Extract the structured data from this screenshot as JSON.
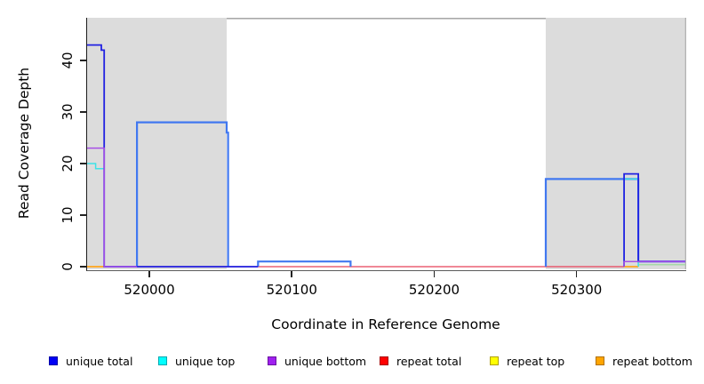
{
  "chart_data": {
    "type": "line",
    "subtype": "step-coverage-plot",
    "title": "",
    "xlabel": "Coordinate in Reference Genome",
    "ylabel": "Read Coverage Depth",
    "xlim": [
      519956,
      520376
    ],
    "ylim": [
      0,
      48
    ],
    "grid": "off",
    "legend_position": "bottom",
    "x_ticks": [
      {
        "label": "520000",
        "value": 520000
      },
      {
        "label": "520100",
        "value": 520100
      },
      {
        "label": "520200",
        "value": 520200
      },
      {
        "label": "520300",
        "value": 520300
      }
    ],
    "y_ticks": [
      {
        "label": "0",
        "value": 0
      },
      {
        "label": "10",
        "value": 10
      },
      {
        "label": "20",
        "value": 20
      },
      {
        "label": "30",
        "value": 30
      },
      {
        "label": "40",
        "value": 40
      }
    ],
    "shaded_regions": [
      {
        "x1": 519956,
        "x2": 520054,
        "color": "#DCDCDC"
      },
      {
        "x1": 520278,
        "x2": 520376,
        "color": "#DCDCDC"
      }
    ],
    "frame_top_color": "#9B9B9B",
    "series": [
      {
        "name": "unique total",
        "color": "#2222E2",
        "width": 1.8,
        "z": 6,
        "segments": [
          [
            519956,
            519966,
            43
          ],
          [
            519966,
            519968,
            42
          ],
          [
            519968,
            520076,
            0
          ],
          [
            520333,
            520343,
            18
          ],
          [
            520343,
            520376,
            1
          ]
        ]
      },
      {
        "name": "unique top",
        "color": "#3FE2E6",
        "width": 1.5,
        "z": 5,
        "segments": [
          [
            519956,
            519962,
            20
          ],
          [
            519962,
            519968,
            19
          ],
          [
            520333,
            520343,
            17
          ]
        ]
      },
      {
        "name": "unique bottom",
        "color": "#A64FE6",
        "width": 1.5,
        "z": 7,
        "segments": [
          [
            519956,
            519968,
            23
          ],
          [
            519968,
            519991,
            0
          ],
          [
            520333,
            520376,
            1
          ]
        ]
      },
      {
        "name": "repeat total",
        "color": "#E84058",
        "width": 1.3,
        "z": 1,
        "segments": [
          [
            519991,
            520333,
            0
          ]
        ]
      },
      {
        "name": "repeat top",
        "color": "#FFFF00",
        "width": 1.3,
        "z": 2,
        "segments": []
      },
      {
        "name": "repeat bottom",
        "color": "#FFA51C",
        "width": 1.8,
        "z": 3,
        "segments": [
          [
            519956,
            519968,
            0
          ],
          [
            520333,
            520343,
            0
          ]
        ]
      },
      {
        "name": "unlabeled bright blue line",
        "color": "#4178F0",
        "width": 2.2,
        "z": 4,
        "segments": [
          [
            519991,
            520054,
            28
          ],
          [
            520054,
            520055,
            26
          ],
          [
            520076,
            520141,
            1
          ],
          [
            520278,
            520343,
            17
          ],
          [
            520343,
            520376,
            1
          ]
        ]
      },
      {
        "name": "unlabeled light green line",
        "color": "#A6D8A8",
        "width": 1.5,
        "z": 0,
        "segments": [
          [
            520343,
            520376,
            0.4
          ]
        ]
      }
    ]
  },
  "axes": {
    "xlabel": "Coordinate in Reference Genome",
    "ylabel": "Read Coverage Depth"
  },
  "legend": {
    "items": [
      {
        "label": "unique total",
        "fill": "#0000F5",
        "border": "#0000A8"
      },
      {
        "label": "unique top",
        "fill": "#00FFFF",
        "border": "#00A8B0"
      },
      {
        "label": "unique bottom",
        "fill": "#A020F0",
        "border": "#6A12A0"
      },
      {
        "label": "repeat total",
        "fill": "#FF0000",
        "border": "#A80000"
      },
      {
        "label": "repeat top",
        "fill": "#FFFF00",
        "border": "#B0A000"
      },
      {
        "label": "repeat bottom",
        "fill": "#FFA500",
        "border": "#B07000"
      }
    ]
  }
}
